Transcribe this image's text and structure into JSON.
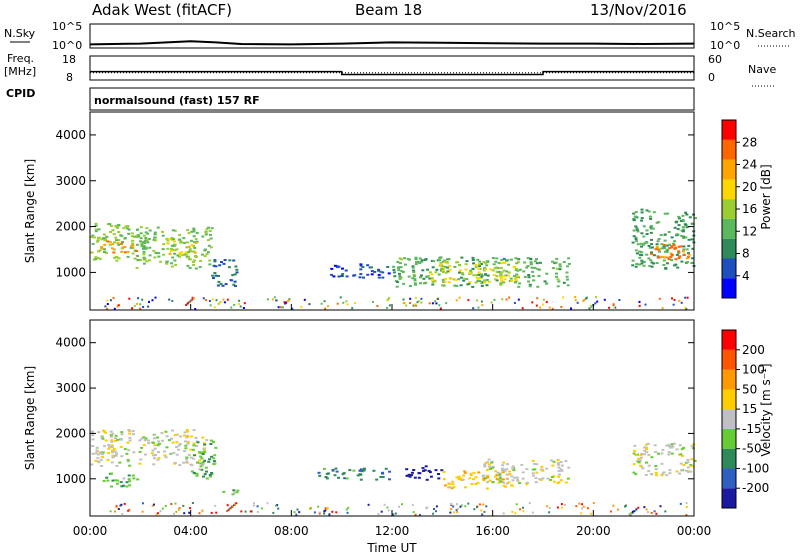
{
  "header": {
    "station": "Adak West (fitACF)",
    "beam": "Beam 18",
    "date": "13/Nov/2016"
  },
  "top_panels": {
    "nsky_label": "N.Sky",
    "nsky_ticks": [
      "10^5",
      "10^0"
    ],
    "nsearch_label": "N.Search",
    "nsearch_ticks": [
      "10^5",
      "10^0"
    ],
    "freq_label": "Freq.",
    "freq_unit": "[MHz]",
    "freq_ticks": [
      "18",
      "8"
    ],
    "nave_label": "Nave",
    "nave_ticks": [
      "60",
      "0"
    ],
    "cpid_label": "CPID",
    "cpid_text": "normalsound (fast) 157 RF"
  },
  "axes": {
    "ylabel": "Slant Range [km]",
    "yticks": [
      "4000",
      "3000",
      "2000",
      "1000"
    ],
    "xlabel": "Time UT",
    "xticks": [
      "00:00",
      "04:00",
      "08:00",
      "12:00",
      "16:00",
      "20:00",
      "00:00"
    ]
  },
  "power_colorbar": {
    "label": "Power [dB]",
    "ticks": [
      "28",
      "24",
      "20",
      "16",
      "12",
      "8",
      "4"
    ],
    "colors": [
      "#0000ff",
      "#1f4fbf",
      "#2e8b57",
      "#5cb85c",
      "#9acd32",
      "#ffd700",
      "#ffa500",
      "#ff6600",
      "#ff0000"
    ]
  },
  "velocity_colorbar": {
    "label": "Velocity [m s⁻¹]",
    "ticks": [
      "200",
      "100",
      "50",
      "15",
      "-15",
      "-50",
      "-100",
      "-200"
    ],
    "colors": [
      "#1a1aa0",
      "#2f5fc0",
      "#2e8b57",
      "#66cc33",
      "#c0c0c0",
      "#ffcc00",
      "#ff9900",
      "#ff5500",
      "#ff0000"
    ]
  },
  "chart_data": [
    {
      "type": "line",
      "name": "N.Sky / N.Search",
      "x_hours": [
        0,
        2,
        4,
        5,
        6,
        8,
        10,
        12,
        14,
        16,
        18,
        20,
        22,
        24
      ],
      "nsky_log10": [
        0.4,
        0.6,
        1.2,
        0.9,
        0.5,
        0.4,
        0.6,
        0.9,
        0.8,
        0.7,
        0.6,
        0.6,
        0.5,
        0.6
      ]
    },
    {
      "type": "line",
      "name": "Freq. / Nave",
      "freq_segments": [
        {
          "start_hour": 0,
          "end_hour": 10,
          "freq_mhz": 11.5
        },
        {
          "start_hour": 10,
          "end_hour": 18,
          "freq_mhz": 10.3
        },
        {
          "start_hour": 18,
          "end_hour": 24,
          "freq_mhz": 11.5
        }
      ],
      "nave_level": 18
    },
    {
      "type": "heatmap",
      "quantity": "Power [dB]",
      "x_range_hours": [
        0,
        24
      ],
      "y_range_km": [
        180,
        4500
      ],
      "clim": [
        0,
        30
      ],
      "regions": [
        {
          "t0": 0.0,
          "t1": 2.2,
          "r0": 1250,
          "r1": 2100,
          "value": 14
        },
        {
          "t0": 0.4,
          "t1": 1.8,
          "r0": 1450,
          "r1": 1700,
          "value": 23
        },
        {
          "t0": 1.8,
          "t1": 4.8,
          "r0": 1100,
          "r1": 2000,
          "value": 13
        },
        {
          "t0": 3.0,
          "t1": 4.2,
          "r0": 1400,
          "r1": 1750,
          "value": 18
        },
        {
          "t0": 4.8,
          "t1": 5.8,
          "r0": 700,
          "r1": 1300,
          "value": 6
        },
        {
          "t0": 9.5,
          "t1": 12.0,
          "r0": 900,
          "r1": 1200,
          "value": 5
        },
        {
          "t0": 12.0,
          "t1": 19.0,
          "r0": 700,
          "r1": 1350,
          "value": 11
        },
        {
          "t0": 13.5,
          "t1": 17.0,
          "r0": 800,
          "r1": 1250,
          "value": 17
        },
        {
          "t0": 21.5,
          "t1": 24.0,
          "r0": 1100,
          "r1": 2400,
          "value": 10
        },
        {
          "t0": 22.2,
          "t1": 24.0,
          "r0": 1300,
          "r1": 1650,
          "value": 24
        }
      ]
    },
    {
      "type": "heatmap",
      "quantity": "Velocity [m s⁻¹]",
      "x_range_hours": [
        0,
        24
      ],
      "y_range_km": [
        180,
        4500
      ],
      "clim": [
        -200,
        200
      ],
      "regions": [
        {
          "t0": 0.0,
          "t1": 4.5,
          "r0": 1300,
          "r1": 2100,
          "value": 0
        },
        {
          "t0": 4.0,
          "t1": 5.0,
          "r0": 1000,
          "r1": 1900,
          "value": -50
        },
        {
          "t0": 0.5,
          "t1": 2.0,
          "r0": 850,
          "r1": 1150,
          "value": -50
        },
        {
          "t0": 5.2,
          "t1": 6.0,
          "r0": 650,
          "r1": 800,
          "value": -50
        },
        {
          "t0": 9.0,
          "t1": 12.0,
          "r0": 1000,
          "r1": 1250,
          "value": -100
        },
        {
          "t0": 12.5,
          "t1": 14.0,
          "r0": 1000,
          "r1": 1300,
          "value": -200
        },
        {
          "t0": 14.0,
          "t1": 17.0,
          "r0": 800,
          "r1": 1200,
          "value": 50
        },
        {
          "t0": 15.5,
          "t1": 19.0,
          "r0": 900,
          "r1": 1450,
          "value": 0
        },
        {
          "t0": 21.5,
          "t1": 24.0,
          "r0": 1100,
          "r1": 1800,
          "value": 0
        }
      ]
    }
  ]
}
